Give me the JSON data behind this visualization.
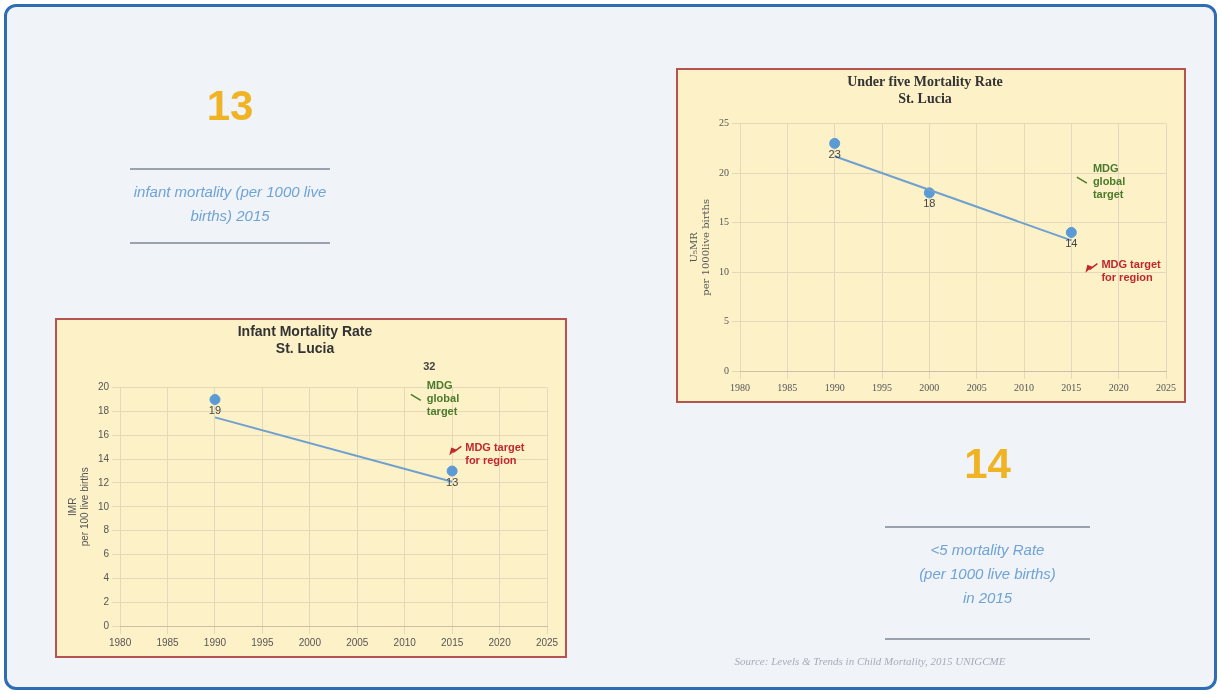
{
  "chart_data": [
    {
      "type": "other",
      "title": "13",
      "subtitle": "infant mortality  (per 1000 live births) 2015"
    },
    {
      "type": "scatter",
      "title": "Under five Mortality Rate\nSt. Lucia",
      "ylabel": "U₅MR\nper 1000live births",
      "xlim": [
        1980,
        2025
      ],
      "xticks": [
        1980,
        1985,
        1990,
        1995,
        2000,
        2005,
        2010,
        2015,
        2020,
        2025
      ],
      "ylim": [
        0,
        25
      ],
      "yticks": [
        0,
        5,
        10,
        15,
        20,
        25
      ],
      "grid": true,
      "series": [
        {
          "type": "line",
          "marker": "none",
          "color": "#6fa0d0",
          "x": [
            1990,
            2015
          ],
          "values": [
            21.7,
            13.2
          ]
        },
        {
          "marker": "circle",
          "color": "#5b9bd5",
          "x": [
            1990,
            2000,
            2015
          ],
          "values": [
            23,
            18,
            14
          ],
          "value_labels": [
            "23",
            "18",
            "14"
          ]
        }
      ],
      "annotations": [
        "MDG\nglobal\ntarget",
        "MDG target\nfor region"
      ]
    },
    {
      "type": "scatter",
      "title": "Infant Mortality Rate\nSt. Lucia",
      "ylabel": "IMR\nper 100 live births",
      "xlim": [
        1980,
        2025
      ],
      "xticks": [
        1980,
        1985,
        1990,
        1995,
        2000,
        2005,
        2010,
        2015,
        2020,
        2025
      ],
      "ylim": [
        0,
        20
      ],
      "yticks": [
        0,
        2,
        4,
        6,
        8,
        10,
        12,
        14,
        16,
        18,
        20
      ],
      "grid": true,
      "series": [
        {
          "type": "line",
          "marker": "none",
          "color": "#6fa0d0",
          "x": [
            1990,
            2015
          ],
          "values": [
            17.5,
            12.1
          ]
        },
        {
          "marker": "circle",
          "color": "#5b9bd5",
          "x": [
            1990,
            2015
          ],
          "values": [
            19,
            13
          ],
          "value_labels": [
            "19",
            "13"
          ]
        }
      ],
      "annotations": [
        "32",
        "MDG\nglobal\ntarget",
        "MDG target\nfor region"
      ]
    },
    {
      "type": "other",
      "title": "14",
      "subtitle": "<5 mortality  Rate\n(per 1000 live births)\nin 2015"
    },
    {
      "type": "other",
      "annotations": [
        "Source: Levels & Trends in Child Mortality, 2015 UNIGCME"
      ]
    }
  ]
}
